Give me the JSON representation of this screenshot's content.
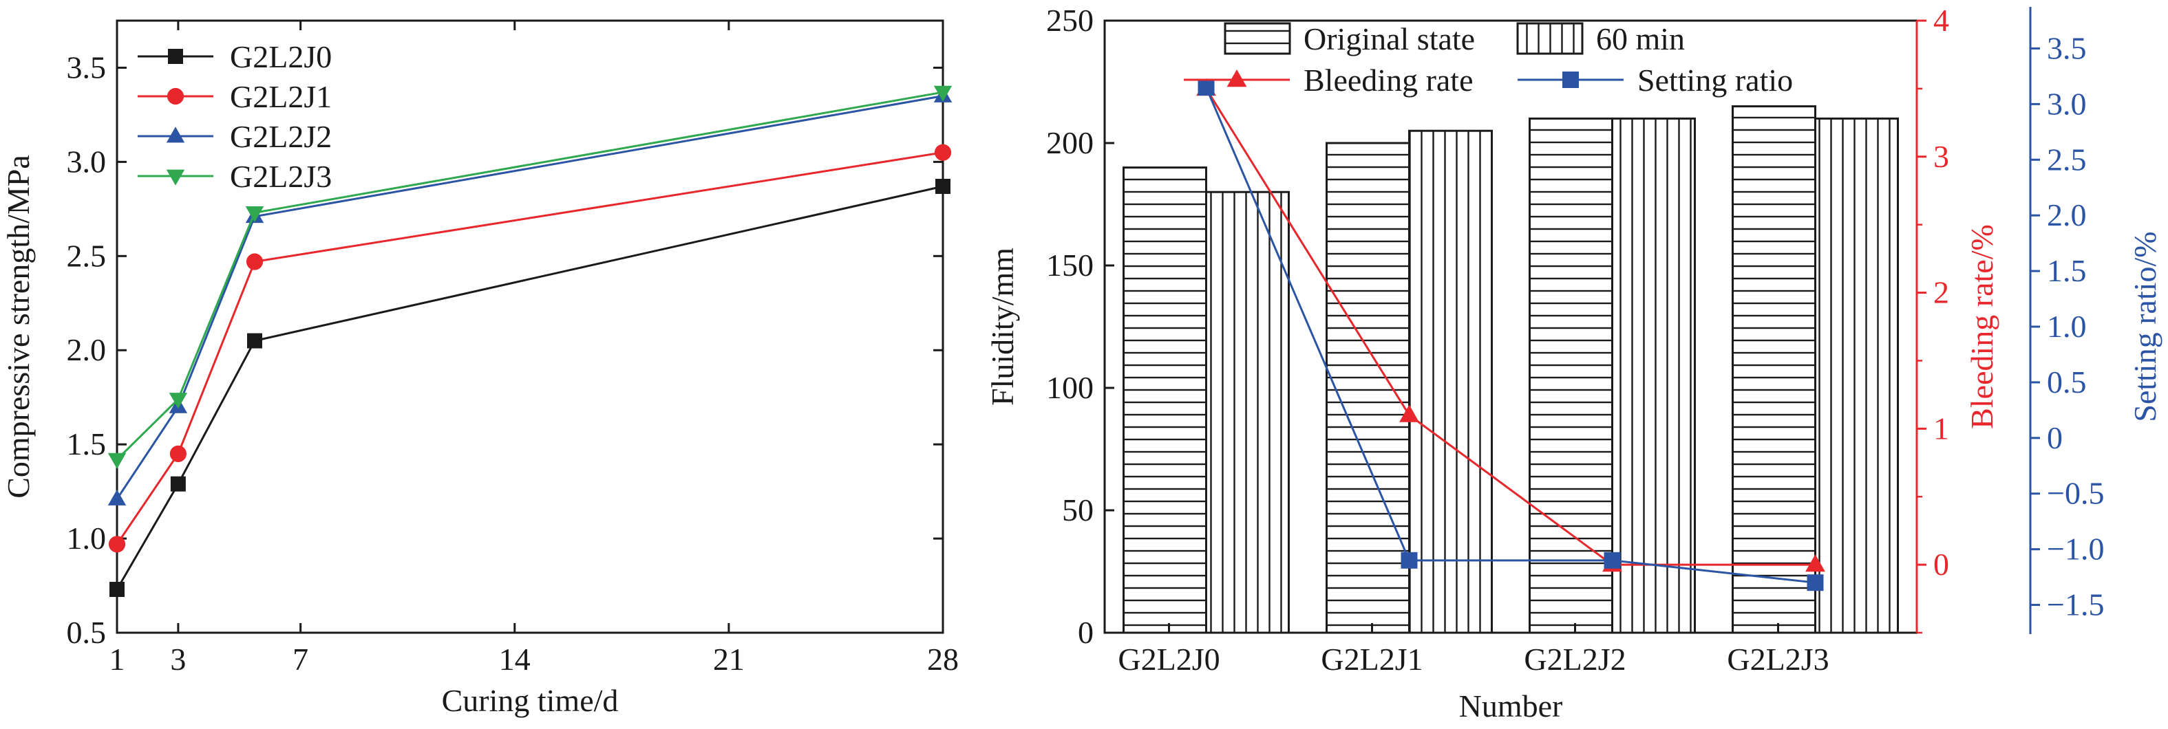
{
  "chart_data": [
    {
      "type": "line",
      "xlabel": "Curing time/d",
      "ylabel": "Compressive strength/MPa",
      "xlim": [
        1,
        28
      ],
      "ylim": [
        0.5,
        3.75
      ],
      "xticks": [
        1,
        3,
        7,
        14,
        21,
        28
      ],
      "yticks": [
        0.5,
        1.0,
        1.5,
        2.0,
        2.5,
        3.0,
        3.5
      ],
      "grid": false,
      "legend": "top-left",
      "x": [
        1,
        3,
        5.5,
        28
      ],
      "series": [
        {
          "name": "G2L2J0",
          "values": [
            0.73,
            1.29,
            2.05,
            2.87
          ],
          "color": "#1a1a1a",
          "marker": "square"
        },
        {
          "name": "G2L2J1",
          "values": [
            0.97,
            1.45,
            2.47,
            3.05
          ],
          "color": "#e8272c",
          "marker": "circle"
        },
        {
          "name": "G2L2J2",
          "values": [
            1.21,
            1.7,
            2.71,
            3.35
          ],
          "color": "#2b55a4",
          "marker": "triangle-up"
        },
        {
          "name": "G2L2J3",
          "values": [
            1.42,
            1.74,
            2.73,
            3.37
          ],
          "color": "#2fa84f",
          "marker": "triangle-down"
        }
      ]
    },
    {
      "type": "bar",
      "xlabel": "Number",
      "ylabel": "Fluidity/mm",
      "ylabel_right": "Bleeding rate/%",
      "ylabel_right2": "Setting ratio/%",
      "categories": [
        "G2L2J0",
        "G2L2J1",
        "G2L2J2",
        "G2L2J3"
      ],
      "ylim": [
        0,
        250
      ],
      "yticks": [
        0,
        50,
        100,
        150,
        200,
        250
      ],
      "ylim_right": [
        -0.5,
        4
      ],
      "yticks_right": [
        0,
        1,
        2,
        3,
        4
      ],
      "ylim_right2": [
        -1.75,
        3.75
      ],
      "yticks_right2": [
        -1.5,
        -1.0,
        -0.5,
        0,
        0.5,
        1.0,
        1.5,
        2.0,
        2.5,
        3.0,
        3.5
      ],
      "yticklabels_right2": [
        "−1.5",
        "−1.0",
        "−0.5",
        "0",
        "0.5",
        "1.0",
        "1.5",
        "2.0",
        "2.5",
        "3.0",
        "3.5"
      ],
      "grid": false,
      "legend": "top",
      "series": [
        {
          "name": "Original state",
          "values": [
            190,
            200,
            210,
            215
          ],
          "pattern": "horizontal-lines",
          "axis": "left"
        },
        {
          "name": "60 min",
          "values": [
            180,
            205,
            210,
            210
          ],
          "pattern": "vertical-lines",
          "axis": "left"
        },
        {
          "name": "Bleeding rate",
          "values": [
            3.5,
            1.1,
            0,
            0
          ],
          "color": "#e8272c",
          "marker": "triangle-up",
          "axis": "right"
        },
        {
          "name": "Setting ratio",
          "values": [
            3.15,
            -1.1,
            -1.1,
            -1.3
          ],
          "color": "#2b55a4",
          "marker": "square",
          "axis": "right2"
        }
      ]
    }
  ]
}
